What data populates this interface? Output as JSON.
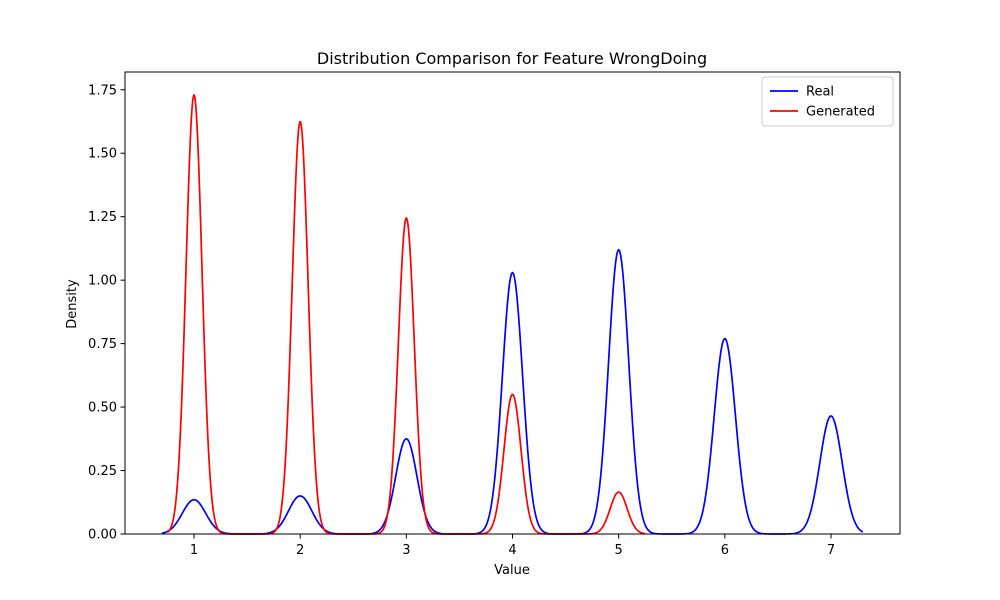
{
  "chart_data": {
    "type": "line",
    "title": "Distribution Comparison for Feature WrongDoing",
    "xlabel": "Value",
    "ylabel": "Density",
    "xlim": [
      0.35,
      7.65
    ],
    "ylim": [
      0,
      1.82
    ],
    "xticks": [
      1,
      2,
      3,
      4,
      5,
      6,
      7
    ],
    "xtick_labels": [
      "1",
      "2",
      "3",
      "4",
      "5",
      "6",
      "7"
    ],
    "yticks": [
      0,
      0.25,
      0.5,
      0.75,
      1.0,
      1.25,
      1.5,
      1.75
    ],
    "ytick_labels": [
      "0.00",
      "0.25",
      "0.50",
      "0.75",
      "1.00",
      "1.25",
      "1.50",
      "1.75"
    ],
    "grid": false,
    "legend_position": "top-right",
    "series": [
      {
        "name": "Real",
        "color": "#0000ff",
        "x_range": [
          0.7,
          7.3
        ],
        "peaks": [
          {
            "x": 1,
            "density": 0.135,
            "sigma": 0.11
          },
          {
            "x": 2,
            "density": 0.15,
            "sigma": 0.11
          },
          {
            "x": 3,
            "density": 0.375,
            "sigma": 0.1
          },
          {
            "x": 4,
            "density": 1.03,
            "sigma": 0.095
          },
          {
            "x": 5,
            "density": 1.12,
            "sigma": 0.095
          },
          {
            "x": 6,
            "density": 0.77,
            "sigma": 0.1
          },
          {
            "x": 7,
            "density": 0.465,
            "sigma": 0.105
          }
        ]
      },
      {
        "name": "Generated",
        "color": "#ff0000",
        "x_range": [
          0.75,
          5.25
        ],
        "peaks": [
          {
            "x": 1,
            "density": 1.73,
            "sigma": 0.075
          },
          {
            "x": 2,
            "density": 1.625,
            "sigma": 0.075
          },
          {
            "x": 3,
            "density": 1.245,
            "sigma": 0.075
          },
          {
            "x": 4,
            "density": 0.55,
            "sigma": 0.08
          },
          {
            "x": 5,
            "density": 0.165,
            "sigma": 0.08
          }
        ]
      }
    ]
  }
}
